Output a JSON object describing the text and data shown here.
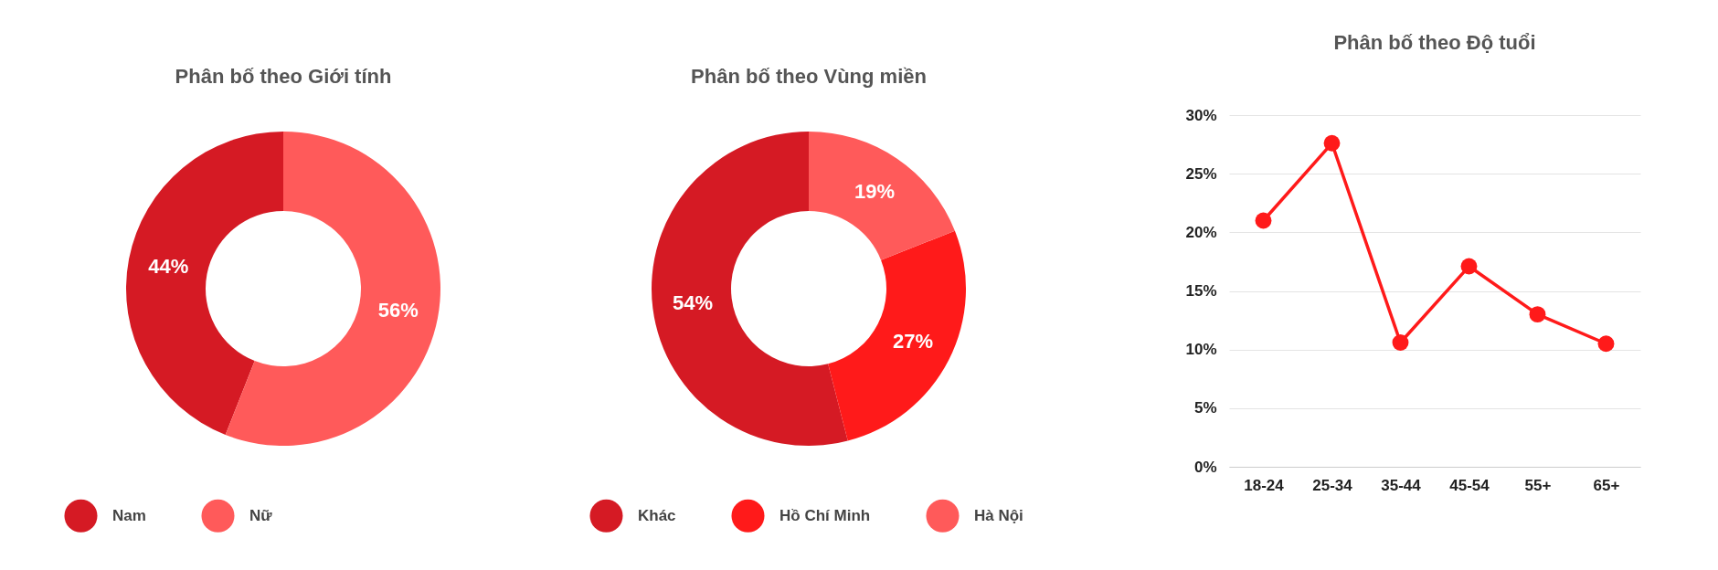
{
  "chart_data": [
    {
      "type": "donut",
      "title": "Phân bố theo Giới tính",
      "categories": [
        "Nam",
        "Nữ"
      ],
      "values": [
        44,
        56
      ],
      "colors": [
        "#d51a24",
        "#ff5a5a"
      ],
      "value_labels": [
        "44%",
        "56%"
      ],
      "legend": "bottom"
    },
    {
      "type": "donut",
      "title": "Phân bố theo Vùng miền",
      "categories": [
        "Khác",
        "Hồ Chí Minh",
        "Hà Nội"
      ],
      "values": [
        54,
        27,
        19
      ],
      "colors": [
        "#d51a24",
        "#ff1a1a",
        "#ff5a5a"
      ],
      "value_labels": [
        "54%",
        "27%",
        "19%"
      ],
      "legend": "bottom"
    },
    {
      "type": "line",
      "title": "Phân bố theo Độ tuổi",
      "categories": [
        "18-24",
        "25-34",
        "35-44",
        "45-54",
        "55+",
        "65+"
      ],
      "values": [
        21.0,
        27.6,
        10.6,
        17.1,
        13.0,
        10.5
      ],
      "color": "#ff1a1a",
      "marker": "circle",
      "ylim": [
        0,
        30
      ],
      "yticks": [
        {
          "value": 0,
          "label": "0%"
        },
        {
          "value": 5,
          "label": "5%"
        },
        {
          "value": 10,
          "label": "10%"
        },
        {
          "value": 15,
          "label": "15%"
        },
        {
          "value": 20,
          "label": "20%"
        },
        {
          "value": 25,
          "label": "25%"
        },
        {
          "value": 30,
          "label": "30%"
        }
      ],
      "grid": "y"
    }
  ]
}
